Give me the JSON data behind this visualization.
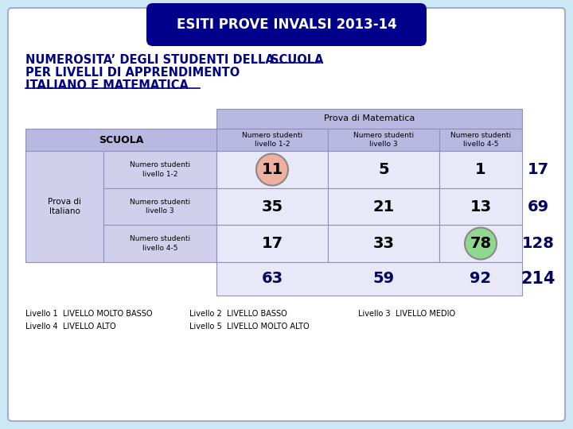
{
  "title": "ESITI PROVE INVALSI 2013-14",
  "subtitle_line1a": "NUMEROSITA’ DEGLI STUDENTI DELLA ",
  "subtitle_line1b": "SCUOLA",
  "subtitle_line2": "PER LIVELLI DI APPRENDIMENTO",
  "subtitle_line3": "ITALIANO E MATEMATICA",
  "outer_bg": "#cce8f4",
  "title_bg": "#00008B",
  "title_color": "#ffffff",
  "table_header_bg": "#b8b8e0",
  "table_row_bg": "#d0d0ec",
  "table_cell_bg": "#e8e8f8",
  "subtitle_color": "#000080",
  "data": {
    "row_labels": [
      "Numero studenti\nlivello 1-2",
      "Numero studenti\nlivello 3",
      "Numero studenti\nlivello 4-5"
    ],
    "col_labels": [
      "Numero studenti\nlivello 1-2",
      "Numero studenti\nlivello 3",
      "Numero studenti\nlivello 4-5"
    ],
    "values": [
      [
        11,
        5,
        1
      ],
      [
        35,
        21,
        13
      ],
      [
        17,
        33,
        78
      ]
    ],
    "row_totals": [
      17,
      69,
      128
    ],
    "col_totals": [
      63,
      59,
      92
    ],
    "grand_total": 214
  },
  "circle_cells": [
    [
      0,
      0
    ],
    [
      2,
      2
    ]
  ],
  "circle_colors": [
    "#f0b0a0",
    "#90d890"
  ],
  "legend_col1": [
    "Livello 1  LIVELLO MOLTO BASSO",
    "Livello 4  LIVELLO ALTO"
  ],
  "legend_col2": [
    "Livello 2  LIVELLO BASSO",
    "Livello 5  LIVELLO MOLTO ALTO"
  ],
  "legend_col3": [
    "Livello 3  LIVELLO MEDIO"
  ]
}
